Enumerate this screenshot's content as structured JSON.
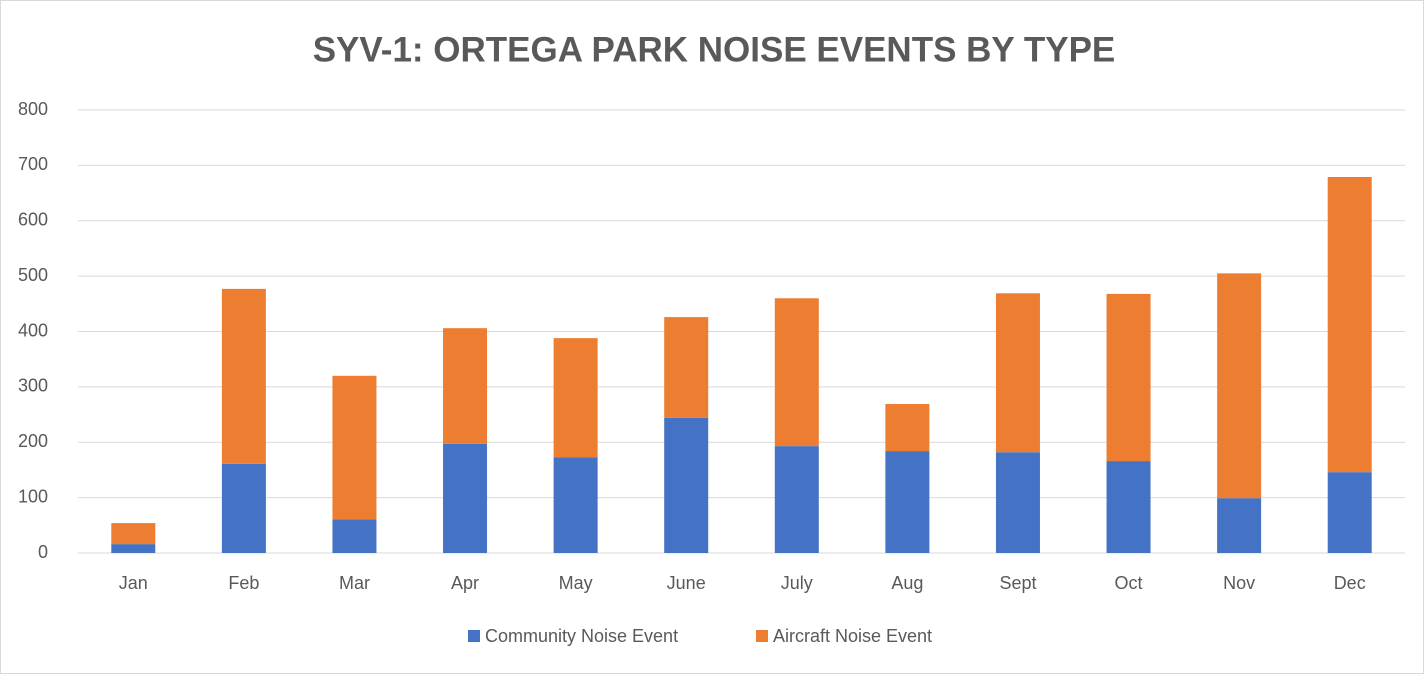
{
  "chart_data": {
    "type": "stacked_bar",
    "title": "SYV-1: ORTEGA PARK NOISE EVENTS BY TYPE",
    "categories": [
      "Jan",
      "Feb",
      "Mar",
      "Apr",
      "May",
      "June",
      "July",
      "Aug",
      "Sept",
      "Oct",
      "Nov",
      "Dec"
    ],
    "series": [
      {
        "name": "Community Noise Event",
        "color": "#4472c4",
        "values": [
          16,
          161,
          61,
          197,
          173,
          244,
          193,
          184,
          182,
          166,
          99,
          146
        ]
      },
      {
        "name": "Aircraft Noise Event",
        "color": "#ed7d31",
        "values": [
          38,
          316,
          259,
          209,
          215,
          182,
          267,
          85,
          287,
          302,
          406,
          533
        ]
      }
    ],
    "ylim": [
      0,
      800
    ],
    "yticks": [
      0,
      100,
      200,
      300,
      400,
      500,
      600,
      700,
      800
    ],
    "grid": true,
    "legend": "bottom"
  }
}
